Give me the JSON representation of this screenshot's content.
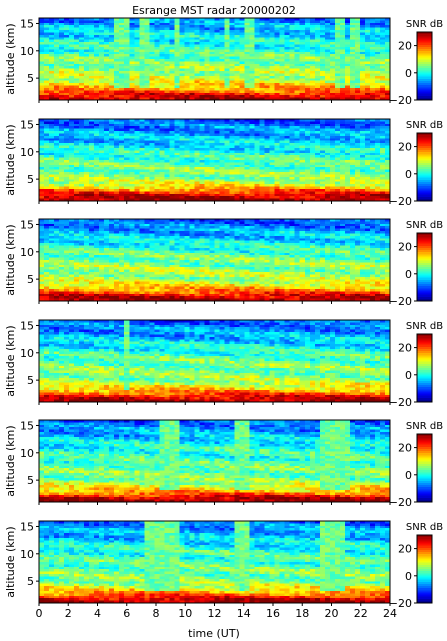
{
  "chart_data": {
    "type": "heatmap",
    "title": "Esrange MST radar 20000202",
    "xlabel": "time (UT)",
    "ylabel": "altitude (km)",
    "colorbar_label": "SNR dB",
    "xlim": [
      0,
      24
    ],
    "ylim": [
      1,
      16
    ],
    "clim": [
      -20,
      30
    ],
    "x_ticks": [
      0,
      2,
      4,
      6,
      8,
      10,
      12,
      14,
      16,
      18,
      20,
      22,
      24
    ],
    "x_tick_labels": [
      "0",
      "2",
      "4",
      "6",
      "8",
      "10",
      "12",
      "14",
      "16",
      "18",
      "20",
      "22",
      "24"
    ],
    "y_ticks": [
      5,
      10,
      15
    ],
    "y_tick_labels": [
      "5",
      "10",
      "15"
    ],
    "colorbar_ticks": [
      -20,
      0,
      20
    ],
    "colorbar_tick_labels": [
      "−20",
      "0",
      "20"
    ],
    "colormap": "jet",
    "panels": [
      {
        "profile_snr_db": [
          [
            1,
            28
          ],
          [
            2,
            24
          ],
          [
            3,
            16
          ],
          [
            4,
            12
          ],
          [
            5,
            8
          ],
          [
            7,
            6
          ],
          [
            9,
            3
          ],
          [
            11,
            0
          ],
          [
            13,
            -3
          ],
          [
            15,
            -6
          ],
          [
            16,
            -8
          ]
        ],
        "vertical_streaks_ut": [
          5.3,
          5.6,
          5.9,
          7.2,
          9.5,
          13.0,
          14.1,
          14.4,
          20.4,
          20.7,
          21.3,
          21.6
        ]
      },
      {
        "profile_snr_db": [
          [
            1,
            30
          ],
          [
            2,
            26
          ],
          [
            3,
            18
          ],
          [
            4,
            10
          ],
          [
            5,
            6
          ],
          [
            7,
            4
          ],
          [
            9,
            2
          ],
          [
            11,
            -2
          ],
          [
            13,
            -5
          ],
          [
            15,
            -8
          ],
          [
            16,
            -10
          ]
        ],
        "vertical_streaks_ut": []
      },
      {
        "profile_snr_db": [
          [
            1,
            30
          ],
          [
            2,
            25
          ],
          [
            3,
            17
          ],
          [
            4,
            11
          ],
          [
            5,
            7
          ],
          [
            7,
            6
          ],
          [
            9,
            4
          ],
          [
            11,
            0
          ],
          [
            13,
            -4
          ],
          [
            15,
            -8
          ],
          [
            16,
            -10
          ]
        ],
        "vertical_streaks_ut": []
      },
      {
        "profile_snr_db": [
          [
            1,
            29
          ],
          [
            2,
            24
          ],
          [
            3,
            16
          ],
          [
            4,
            10
          ],
          [
            5,
            6
          ],
          [
            7,
            5
          ],
          [
            9,
            3
          ],
          [
            11,
            -1
          ],
          [
            13,
            -5
          ],
          [
            15,
            -8
          ],
          [
            16,
            -10
          ]
        ],
        "vertical_streaks_ut": [
          6.0
        ]
      },
      {
        "profile_snr_db": [
          [
            1,
            30
          ],
          [
            2,
            24
          ],
          [
            3,
            15
          ],
          [
            4,
            9
          ],
          [
            5,
            5
          ],
          [
            7,
            4
          ],
          [
            9,
            2
          ],
          [
            11,
            0
          ],
          [
            13,
            -4
          ],
          [
            15,
            -8
          ],
          [
            16,
            -10
          ]
        ],
        "vertical_streaks_ut": [
          8.4,
          8.7,
          9.0,
          9.3,
          13.7,
          14.0,
          14.3,
          19.5,
          19.8,
          20.1,
          20.4,
          20.7,
          21.0
        ]
      },
      {
        "profile_snr_db": [
          [
            1,
            30
          ],
          [
            2,
            24
          ],
          [
            3,
            15
          ],
          [
            4,
            9
          ],
          [
            5,
            5
          ],
          [
            7,
            4
          ],
          [
            9,
            2
          ],
          [
            11,
            0
          ],
          [
            13,
            -4
          ],
          [
            15,
            -7
          ],
          [
            16,
            -9
          ]
        ],
        "vertical_streaks_ut": [
          7.5,
          7.8,
          8.1,
          8.4,
          8.7,
          9.0,
          9.3,
          13.7,
          14.0,
          14.3,
          19.5,
          19.8,
          20.1,
          20.4,
          20.7
        ]
      }
    ]
  }
}
